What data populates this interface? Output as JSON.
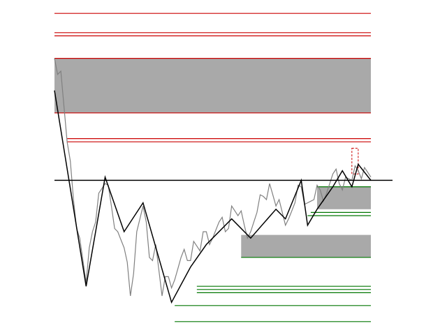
{
  "chart_data": {
    "type": "line",
    "title": "",
    "xlabel": "",
    "ylabel": "",
    "grid": false,
    "legend": "none",
    "xlim": [
      0,
      100
    ],
    "ylim": [
      0,
      100
    ],
    "colors": {
      "resistance": "#cc0000",
      "support": "#007700",
      "zone_fill": "#a9a9a9",
      "zigzag": "#000000",
      "price": "#808080",
      "baseline": "#000000"
    },
    "baseline_y": 46,
    "resistance_levels": [
      98,
      92,
      91,
      59,
      58
    ],
    "resistance_zones": [
      [
        67,
        84
      ]
    ],
    "resistance_marker": [
      [
        94,
        96,
        48,
        56
      ]
    ],
    "support_levels": [
      44,
      36,
      35,
      22,
      13,
      12,
      11,
      7,
      2
    ],
    "support_zones": [
      [
        37,
        44
      ],
      [
        22,
        29
      ]
    ],
    "zigzag": {
      "x": [
        0,
        10,
        16,
        22,
        28,
        37,
        43,
        48,
        56,
        62,
        70,
        73,
        78,
        80,
        83,
        88,
        91,
        94,
        96,
        100
      ],
      "y": [
        74,
        13,
        47,
        30,
        39,
        8,
        19,
        26,
        34,
        28,
        37,
        34,
        46,
        32,
        37,
        44,
        49,
        44,
        51,
        46
      ]
    },
    "price_path": {
      "x": [
        0,
        2,
        4,
        6,
        8,
        10,
        12,
        14,
        16,
        18,
        20,
        22,
        24,
        26,
        28,
        30,
        32,
        34,
        36,
        38,
        40,
        42,
        44,
        46,
        48,
        50,
        52,
        54,
        56,
        58,
        60,
        62,
        64,
        66,
        68,
        70,
        72,
        74,
        76,
        78,
        80,
        82,
        84,
        86,
        88,
        90,
        92,
        94,
        96,
        98,
        100
      ],
      "y": [
        84,
        80,
        58,
        40,
        28,
        14,
        30,
        42,
        45,
        38,
        30,
        25,
        10,
        30,
        38,
        22,
        26,
        10,
        16,
        15,
        22,
        21,
        27,
        24,
        30,
        28,
        33,
        30,
        38,
        35,
        32,
        30,
        36,
        41,
        45,
        38,
        36,
        34,
        39,
        44,
        39,
        40,
        43,
        42,
        48,
        45,
        47,
        46,
        49,
        50,
        47
      ]
    }
  }
}
